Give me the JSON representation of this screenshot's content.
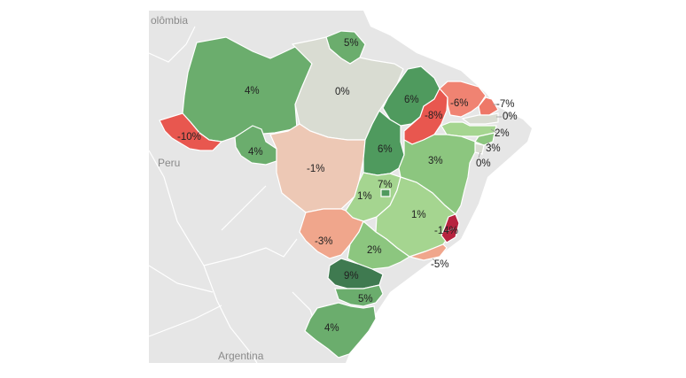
{
  "map": {
    "countries": [
      {
        "key": "colombia",
        "label": "olômbia"
      },
      {
        "key": "peru",
        "label": "Peru"
      },
      {
        "key": "argentina",
        "label": "Argentina"
      }
    ],
    "colors": {
      "background": "#e6e6e6",
      "borders": "#ffffff",
      "neutral": "#d9dcd2",
      "deep_green": "#3f8a56",
      "mid_green": "#6bad6d",
      "light_green": "#a5d590",
      "salmon": "#f0a68c",
      "red": "#e8574f",
      "crimson": "#b7233f"
    },
    "states": [
      {
        "key": "roraima",
        "label": "5%",
        "value": 5,
        "color": "#6bad6d"
      },
      {
        "key": "amazonas",
        "label": "4%",
        "value": 4,
        "color": "#6bad6d"
      },
      {
        "key": "para",
        "label": "0%",
        "value": 0,
        "color": "#d9dcd2"
      },
      {
        "key": "acre",
        "label": "-10%",
        "value": -10,
        "color": "#e8574f"
      },
      {
        "key": "rondonia",
        "label": "4%",
        "value": 4,
        "color": "#6bad6d"
      },
      {
        "key": "mato_grosso",
        "label": "-1%",
        "value": -1,
        "color": "#edc8b5"
      },
      {
        "key": "maranhao",
        "label": "6%",
        "value": 6,
        "color": "#4f9a5e"
      },
      {
        "key": "tocantins",
        "label": "6%",
        "value": 6,
        "color": "#4f9a5e"
      },
      {
        "key": "piaui",
        "label": "-8%",
        "value": -8,
        "color": "#e8574f"
      },
      {
        "key": "ceara",
        "label": "-6%",
        "value": -6,
        "color": "#f08372"
      },
      {
        "key": "rio_grande_do_norte",
        "label": "-7%",
        "value": -7,
        "color": "#ee7868"
      },
      {
        "key": "paraiba",
        "label": "0%",
        "value": 0,
        "color": "#d9dcd2"
      },
      {
        "key": "pernambuco",
        "label": "2%",
        "value": 2,
        "color": "#a5d590"
      },
      {
        "key": "alagoas",
        "label": "3%",
        "value": 3,
        "color": "#8cc67f"
      },
      {
        "key": "sergipe",
        "label": "0%",
        "value": 0,
        "color": "#d9dcd2"
      },
      {
        "key": "bahia",
        "label": "3%",
        "value": 3,
        "color": "#8cc67f"
      },
      {
        "key": "distrito_federal",
        "label": "7%",
        "value": 7,
        "color": "#4f9a5e"
      },
      {
        "key": "goias",
        "label": "1%",
        "value": 1,
        "color": "#a5d590"
      },
      {
        "key": "minas_gerais",
        "label": "1%",
        "value": 1,
        "color": "#a5d590"
      },
      {
        "key": "espirito_santo",
        "label": "-14%",
        "value": -14,
        "color": "#b7233f"
      },
      {
        "key": "rio_de_janeiro",
        "label": "-5%",
        "value": -5,
        "color": "#f0a68c"
      },
      {
        "key": "mato_grosso_do_sul",
        "label": "-3%",
        "value": -3,
        "color": "#f0a68c"
      },
      {
        "key": "sao_paulo",
        "label": "2%",
        "value": 2,
        "color": "#8cc67f"
      },
      {
        "key": "parana",
        "label": "9%",
        "value": 9,
        "color": "#3f7a50"
      },
      {
        "key": "santa_catarina",
        "label": "5%",
        "value": 5,
        "color": "#6bad6d"
      },
      {
        "key": "rio_grande_do_sul",
        "label": "4%",
        "value": 4,
        "color": "#6bad6d"
      }
    ]
  }
}
